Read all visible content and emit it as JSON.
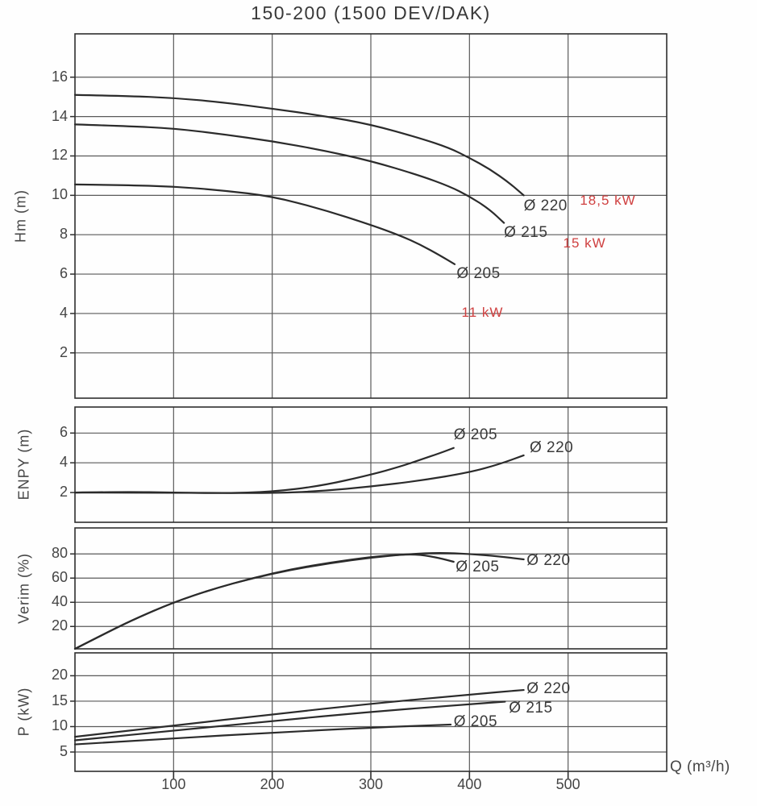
{
  "title": "150-200 (1500 DEV/DAK)",
  "x_axis": {
    "label": "Q (m³/h)",
    "ticks": [
      100,
      200,
      300,
      400,
      500
    ],
    "range": [
      0,
      600
    ]
  },
  "colors": {
    "curve": "#2b2b2b",
    "grid": "#5a5a5a",
    "frame": "#2e2e2e",
    "text": "#3a3a3a",
    "power_label": "#cf4040"
  },
  "chart_data": [
    {
      "id": "hm",
      "type": "line",
      "title": "Head curves",
      "xlabel": "Q (m³/h)",
      "ylabel": "Hm (m)",
      "yticks": [
        2,
        4,
        6,
        8,
        10,
        12,
        14,
        16
      ],
      "ylim": [
        -0.3,
        18.2
      ],
      "xlim": [
        0,
        600
      ],
      "grid": true,
      "series": [
        {
          "name": "Ø 220",
          "x": [
            0,
            50,
            100,
            150,
            200,
            250,
            300,
            350,
            380,
            400,
            420,
            440,
            455
          ],
          "y": [
            15.1,
            15.05,
            14.95,
            14.72,
            14.4,
            14.05,
            13.6,
            12.9,
            12.4,
            11.9,
            11.35,
            10.65,
            10.0
          ]
        },
        {
          "name": "Ø 215",
          "x": [
            0,
            50,
            100,
            150,
            200,
            250,
            300,
            350,
            380,
            400,
            420,
            435
          ],
          "y": [
            13.6,
            13.52,
            13.4,
            13.1,
            12.75,
            12.3,
            11.75,
            11.0,
            10.45,
            9.95,
            9.3,
            8.6
          ]
        },
        {
          "name": "Ø 205",
          "x": [
            0,
            50,
            100,
            150,
            200,
            250,
            300,
            330,
            350,
            370,
            385
          ],
          "y": [
            10.55,
            10.52,
            10.45,
            10.25,
            9.95,
            9.3,
            8.5,
            7.95,
            7.5,
            6.95,
            6.5
          ]
        }
      ],
      "annotations": [
        {
          "text": "Ø 220",
          "q": 455,
          "v": 9.4,
          "color": "default"
        },
        {
          "text": "18,5 kW",
          "q": 512,
          "v": 9.7,
          "color": "power"
        },
        {
          "text": "Ø 215",
          "q": 435,
          "v": 8.05,
          "color": "default"
        },
        {
          "text": "15 kW",
          "q": 495,
          "v": 7.5,
          "color": "power"
        },
        {
          "text": "Ø 205",
          "q": 387,
          "v": 5.95,
          "color": "default"
        },
        {
          "text": "11 kW",
          "q": 392,
          "v": 4.0,
          "color": "power"
        }
      ]
    },
    {
      "id": "enpy",
      "type": "line",
      "title": "NPSH curves",
      "xlabel": "Q (m³/h)",
      "ylabel": "ENPY (m)",
      "yticks": [
        2,
        4,
        6
      ],
      "ylim": [
        0,
        7.75
      ],
      "xlim": [
        0,
        600
      ],
      "grid": true,
      "series": [
        {
          "name": "Ø 205",
          "x": [
            0,
            50,
            100,
            150,
            200,
            250,
            300,
            330,
            350,
            370,
            384
          ],
          "y": [
            2.0,
            2.05,
            2.0,
            1.95,
            2.05,
            2.45,
            3.2,
            3.75,
            4.2,
            4.65,
            5.0
          ]
        },
        {
          "name": "Ø 220",
          "x": [
            0,
            100,
            200,
            250,
            300,
            350,
            400,
            430,
            455
          ],
          "y": [
            2.0,
            2.0,
            1.95,
            2.1,
            2.4,
            2.8,
            3.35,
            3.9,
            4.5
          ]
        }
      ],
      "annotations": [
        {
          "text": "Ø 205",
          "q": 384,
          "v": 5.8,
          "color": "default"
        },
        {
          "text": "Ø 220",
          "q": 461,
          "v": 4.95,
          "color": "default"
        }
      ]
    },
    {
      "id": "verim",
      "type": "line",
      "title": "Efficiency curves",
      "xlabel": "Q (m³/h)",
      "ylabel": "Verim (%)",
      "yticks": [
        20,
        40,
        60,
        80
      ],
      "ylim": [
        1.5,
        101.5
      ],
      "xlim": [
        0,
        600
      ],
      "grid": true,
      "series": [
        {
          "name": "Ø 205",
          "x": [
            0,
            30,
            60,
            100,
            140,
            180,
            220,
            260,
            300,
            330,
            350,
            370,
            384
          ],
          "y": [
            1.5,
            14,
            26,
            40,
            51,
            60,
            67.5,
            73,
            77.5,
            79.5,
            79.5,
            76.5,
            73.5
          ]
        },
        {
          "name": "Ø 220",
          "x": [
            0,
            30,
            60,
            100,
            140,
            180,
            220,
            260,
            300,
            340,
            370,
            400,
            430,
            455
          ],
          "y": [
            1.5,
            14,
            26,
            40,
            51,
            60,
            67,
            72.5,
            77,
            80,
            81,
            80,
            78,
            75.5
          ]
        }
      ],
      "annotations": [
        {
          "text": "Ø 205",
          "q": 386,
          "v": 68,
          "color": "default"
        },
        {
          "text": "Ø 220",
          "q": 458,
          "v": 73.5,
          "color": "default"
        }
      ]
    },
    {
      "id": "p",
      "type": "line",
      "title": "Power curves",
      "xlabel": "Q (m³/h)",
      "ylabel": "P (kW)",
      "yticks": [
        5,
        10,
        15,
        20
      ],
      "ylim": [
        1.2,
        24.5
      ],
      "xlim": [
        0,
        600
      ],
      "grid": true,
      "series": [
        {
          "name": "Ø 220",
          "x": [
            0,
            100,
            200,
            300,
            400,
            455
          ],
          "y": [
            8.0,
            10.2,
            12.4,
            14.5,
            16.3,
            17.2
          ]
        },
        {
          "name": "Ø 215",
          "x": [
            0,
            100,
            200,
            300,
            400,
            436
          ],
          "y": [
            7.3,
            9.2,
            11.1,
            12.9,
            14.4,
            14.9
          ]
        },
        {
          "name": "Ø 205",
          "x": [
            0,
            100,
            200,
            300,
            381
          ],
          "y": [
            6.5,
            7.7,
            8.8,
            9.8,
            10.4
          ]
        }
      ],
      "annotations": [
        {
          "text": "Ø 220",
          "q": 458,
          "v": 17.2,
          "color": "default"
        },
        {
          "text": "Ø 215",
          "q": 440,
          "v": 13.4,
          "color": "default"
        },
        {
          "text": "Ø 205",
          "q": 384,
          "v": 10.7,
          "color": "default"
        }
      ]
    }
  ]
}
